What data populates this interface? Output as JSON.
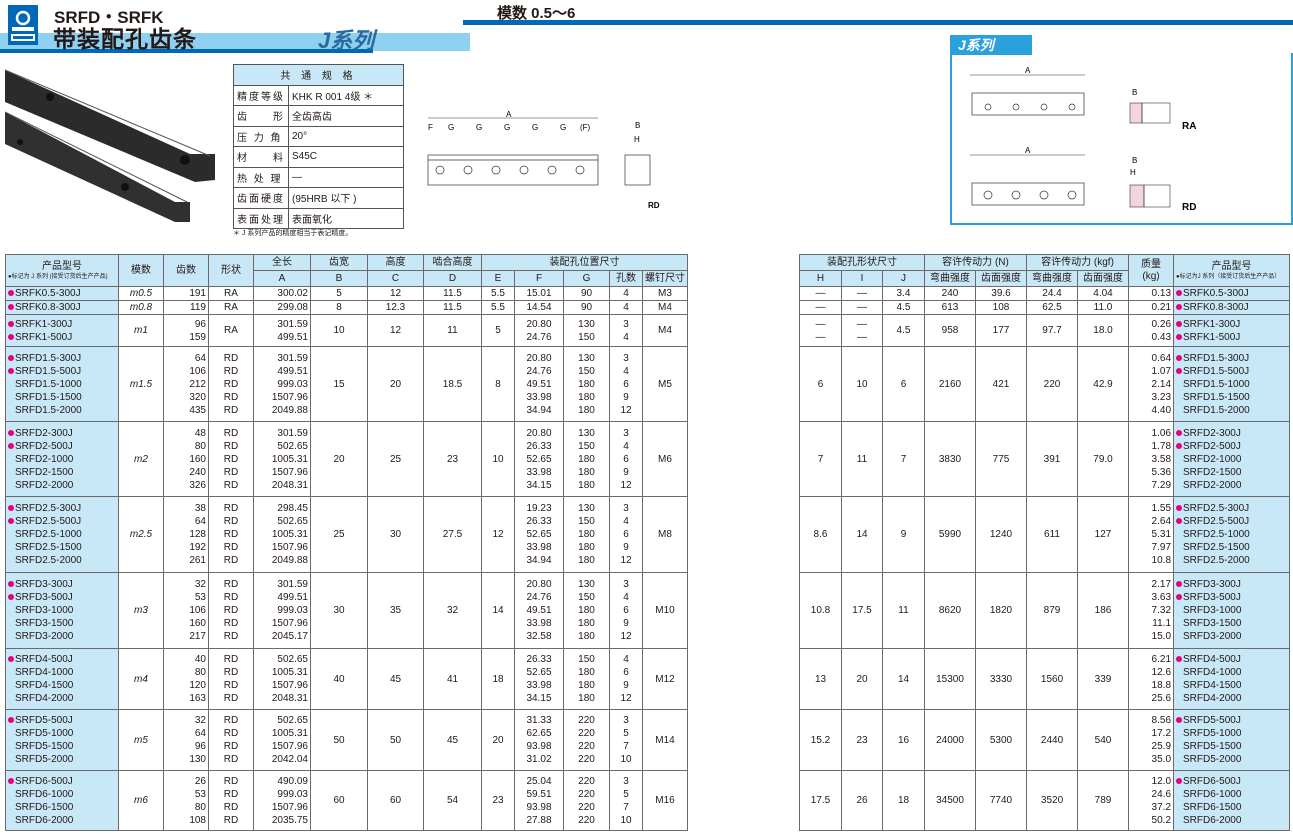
{
  "header": {
    "series_code": "SRFD・SRFK",
    "title": "带装配孔齿条",
    "series_badge": "J系列",
    "module_range": "模数 0.5～6"
  },
  "spec": {
    "title": "共 通 规 格",
    "rows": [
      {
        "k": "精度等级",
        "v": "KHK R 001 4级 ＊"
      },
      {
        "k": "齿　　形",
        "v": "全齿高齿"
      },
      {
        "k": "压 力 角",
        "v": "20°"
      },
      {
        "k": "材　　料",
        "v": "S45C"
      },
      {
        "k": "热 处 理",
        "v": "—"
      },
      {
        "k": "齿面硬度",
        "v": "(95HRB 以下 )"
      },
      {
        "k": "表面处理",
        "v": "表面氧化"
      }
    ],
    "footnote": "＊ J 系列产品的精度相当于表记精度。"
  },
  "diagram": {
    "A": "A",
    "F": "F",
    "G": "G",
    "Fp": "(F)",
    "B": "B",
    "H": "H",
    "RA": "RA",
    "RD": "RD",
    "jtag": "J系列"
  },
  "colors": {
    "accent": "#0068b7",
    "header_bg": "#c8e8f7",
    "j_mark": "#e4007f"
  },
  "table_left": {
    "h_model": "产品型号",
    "h_model_note": "●标记为 J 系列 (接受订货后生产产品)",
    "h_module": "模数",
    "h_teeth": "齿数",
    "h_shape": "形状",
    "h_len": "全长",
    "h_A": "A",
    "h_width": "齿宽",
    "h_B": "B",
    "h_height": "高度",
    "h_C": "C",
    "h_mesh": "啮合高度",
    "h_D": "D",
    "h_hole": "装配孔位置尺寸",
    "h_E": "E",
    "h_F": "F",
    "h_G": "G",
    "h_holes": "孔数",
    "h_screw": "螺钉尺寸"
  },
  "table_right": {
    "h_shape_dim": "装配孔形状尺寸",
    "h_H": "H",
    "h_I": "I",
    "h_J": "J",
    "h_force_N": "容许传动力 (N)",
    "h_force_kgf": "容许传动力 (kgf)",
    "h_bend": "弯曲强度",
    "h_face": "齿面强度",
    "h_mass": "质量",
    "h_mass_unit": "(kg)",
    "h_model": "产品型号",
    "h_model_note": "●标记为J 系列（接受订货后生产产品）"
  },
  "groups": [
    {
      "module": "m0.5",
      "B": "5",
      "C": "12",
      "D": "11.5",
      "E": "5.5",
      "screw": "M3",
      "H": "—",
      "I": "—",
      "J": "3.4",
      "bend_N": "240",
      "face_N": "39.6",
      "bend_kgf": "24.4",
      "face_kgf": "4.04",
      "items": [
        {
          "model": "SRFK0.5-300J",
          "j": true,
          "teeth": "191",
          "shape": "RA",
          "A": "300.02",
          "F": "15.01",
          "G": "90",
          "holes": "4",
          "mass": "0.13"
        }
      ]
    },
    {
      "module": "m0.8",
      "B": "8",
      "C": "12.3",
      "D": "11.5",
      "E": "5.5",
      "screw": "M4",
      "H": "—",
      "I": "—",
      "J": "4.5",
      "bend_N": "613",
      "face_N": "108",
      "bend_kgf": "62.5",
      "face_kgf": "11.0",
      "items": [
        {
          "model": "SRFK0.8-300J",
          "j": true,
          "teeth": "119",
          "shape": "RA",
          "A": "299.08",
          "F": "14.54",
          "G": "90",
          "holes": "4",
          "mass": "0.21"
        }
      ]
    },
    {
      "module": "m1",
      "shape": "RA",
      "B": "10",
      "C": "12",
      "D": "11",
      "E": "5",
      "screw": "M4",
      "H": [
        "—",
        "—"
      ],
      "I": [
        "—",
        "—"
      ],
      "J": "4.5",
      "bend_N": "958",
      "face_N": "177",
      "bend_kgf": "97.7",
      "face_kgf": "18.0",
      "items": [
        {
          "model": "SRFK1-300J",
          "j": true,
          "teeth": "96",
          "A": "301.59",
          "F": "20.80",
          "G": "130",
          "holes": "3",
          "mass": "0.26"
        },
        {
          "model": "SRFK1-500J",
          "j": true,
          "teeth": "159",
          "A": "499.51",
          "F": "24.76",
          "G": "150",
          "holes": "4",
          "mass": "0.43"
        }
      ]
    },
    {
      "module": "m1.5",
      "B": "15",
      "C": "20",
      "D": "18.5",
      "E": "8",
      "screw": "M5",
      "H": "6",
      "I": "10",
      "J": "6",
      "bend_N": "2160",
      "face_N": "421",
      "bend_kgf": "220",
      "face_kgf": "42.9",
      "items": [
        {
          "model": "SRFD1.5-300J",
          "j": true,
          "teeth": "64",
          "shape": "RD",
          "A": "301.59",
          "F": "20.80",
          "G": "130",
          "holes": "3",
          "mass": "0.64"
        },
        {
          "model": "SRFD1.5-500J",
          "j": true,
          "teeth": "106",
          "shape": "RD",
          "A": "499.51",
          "F": "24.76",
          "G": "150",
          "holes": "4",
          "mass": "1.07"
        },
        {
          "model": "SRFD1.5-1000",
          "j": false,
          "teeth": "212",
          "shape": "RD",
          "A": "999.03",
          "F": "49.51",
          "G": "180",
          "holes": "6",
          "mass": "2.14"
        },
        {
          "model": "SRFD1.5-1500",
          "j": false,
          "teeth": "320",
          "shape": "RD",
          "A": "1507.96",
          "F": "33.98",
          "G": "180",
          "holes": "9",
          "mass": "3.23"
        },
        {
          "model": "SRFD1.5-2000",
          "j": false,
          "teeth": "435",
          "shape": "RD",
          "A": "2049.88",
          "F": "34.94",
          "G": "180",
          "holes": "12",
          "mass": "4.40"
        }
      ]
    },
    {
      "module": "m2",
      "B": "20",
      "C": "25",
      "D": "23",
      "E": "10",
      "screw": "M6",
      "H": "7",
      "I": "11",
      "J": "7",
      "bend_N": "3830",
      "face_N": "775",
      "bend_kgf": "391",
      "face_kgf": "79.0",
      "items": [
        {
          "model": "SRFD2-300J",
          "j": true,
          "teeth": "48",
          "shape": "RD",
          "A": "301.59",
          "F": "20.80",
          "G": "130",
          "holes": "3",
          "mass": "1.06"
        },
        {
          "model": "SRFD2-500J",
          "j": true,
          "teeth": "80",
          "shape": "RD",
          "A": "502.65",
          "F": "26.33",
          "G": "150",
          "holes": "4",
          "mass": "1.78"
        },
        {
          "model": "SRFD2-1000",
          "j": false,
          "teeth": "160",
          "shape": "RD",
          "A": "1005.31",
          "F": "52.65",
          "G": "180",
          "holes": "6",
          "mass": "3.58"
        },
        {
          "model": "SRFD2-1500",
          "j": false,
          "teeth": "240",
          "shape": "RD",
          "A": "1507.96",
          "F": "33.98",
          "G": "180",
          "holes": "9",
          "mass": "5.36"
        },
        {
          "model": "SRFD2-2000",
          "j": false,
          "teeth": "326",
          "shape": "RD",
          "A": "2048.31",
          "F": "34.15",
          "G": "180",
          "holes": "12",
          "mass": "7.29"
        }
      ]
    },
    {
      "module": "m2.5",
      "B": "25",
      "C": "30",
      "D": "27.5",
      "E": "12",
      "screw": "M8",
      "H": "8.6",
      "I": "14",
      "J": "9",
      "bend_N": "5990",
      "face_N": "1240",
      "bend_kgf": "611",
      "face_kgf": "127",
      "items": [
        {
          "model": "SRFD2.5-300J",
          "j": true,
          "teeth": "38",
          "shape": "RD",
          "A": "298.45",
          "F": "19.23",
          "G": "130",
          "holes": "3",
          "mass": "1.55"
        },
        {
          "model": "SRFD2.5-500J",
          "j": true,
          "teeth": "64",
          "shape": "RD",
          "A": "502.65",
          "F": "26.33",
          "G": "150",
          "holes": "4",
          "mass": "2.64"
        },
        {
          "model": "SRFD2.5-1000",
          "j": false,
          "teeth": "128",
          "shape": "RD",
          "A": "1005.31",
          "F": "52.65",
          "G": "180",
          "holes": "6",
          "mass": "5.31"
        },
        {
          "model": "SRFD2.5-1500",
          "j": false,
          "teeth": "192",
          "shape": "RD",
          "A": "1507.96",
          "F": "33.98",
          "G": "180",
          "holes": "9",
          "mass": "7.97"
        },
        {
          "model": "SRFD2.5-2000",
          "j": false,
          "teeth": "261",
          "shape": "RD",
          "A": "2049.88",
          "F": "34.94",
          "G": "180",
          "holes": "12",
          "mass": "10.8"
        }
      ]
    },
    {
      "module": "m3",
      "B": "30",
      "C": "35",
      "D": "32",
      "E": "14",
      "screw": "M10",
      "H": "10.8",
      "I": "17.5",
      "J": "11",
      "bend_N": "8620",
      "face_N": "1820",
      "bend_kgf": "879",
      "face_kgf": "186",
      "items": [
        {
          "model": "SRFD3-300J",
          "j": true,
          "teeth": "32",
          "shape": "RD",
          "A": "301.59",
          "F": "20.80",
          "G": "130",
          "holes": "3",
          "mass": "2.17"
        },
        {
          "model": "SRFD3-500J",
          "j": true,
          "teeth": "53",
          "shape": "RD",
          "A": "499.51",
          "F": "24.76",
          "G": "150",
          "holes": "4",
          "mass": "3.63"
        },
        {
          "model": "SRFD3-1000",
          "j": false,
          "teeth": "106",
          "shape": "RD",
          "A": "999.03",
          "F": "49.51",
          "G": "180",
          "holes": "6",
          "mass": "7.32"
        },
        {
          "model": "SRFD3-1500",
          "j": false,
          "teeth": "160",
          "shape": "RD",
          "A": "1507.96",
          "F": "33.98",
          "G": "180",
          "holes": "9",
          "mass": "11.1"
        },
        {
          "model": "SRFD3-2000",
          "j": false,
          "teeth": "217",
          "shape": "RD",
          "A": "2045.17",
          "F": "32.58",
          "G": "180",
          "holes": "12",
          "mass": "15.0"
        }
      ]
    },
    {
      "module": "m4",
      "B": "40",
      "C": "45",
      "D": "41",
      "E": "18",
      "screw": "M12",
      "H": "13",
      "I": "20",
      "J": "14",
      "bend_N": "15300",
      "face_N": "3330",
      "bend_kgf": "1560",
      "face_kgf": "339",
      "items": [
        {
          "model": "SRFD4-500J",
          "j": true,
          "teeth": "40",
          "shape": "RD",
          "A": "502.65",
          "F": "26.33",
          "G": "150",
          "holes": "4",
          "mass": "6.21"
        },
        {
          "model": "SRFD4-1000",
          "j": false,
          "teeth": "80",
          "shape": "RD",
          "A": "1005.31",
          "F": "52.65",
          "G": "180",
          "holes": "6",
          "mass": "12.6"
        },
        {
          "model": "SRFD4-1500",
          "j": false,
          "teeth": "120",
          "shape": "RD",
          "A": "1507.96",
          "F": "33.98",
          "G": "180",
          "holes": "9",
          "mass": "18.8"
        },
        {
          "model": "SRFD4-2000",
          "j": false,
          "teeth": "163",
          "shape": "RD",
          "A": "2048.31",
          "F": "34.15",
          "G": "180",
          "holes": "12",
          "mass": "25.6"
        }
      ]
    },
    {
      "module": "m5",
      "B": "50",
      "C": "50",
      "D": "45",
      "E": "20",
      "screw": "M14",
      "H": "15.2",
      "I": "23",
      "J": "16",
      "bend_N": "24000",
      "face_N": "5300",
      "bend_kgf": "2440",
      "face_kgf": "540",
      "items": [
        {
          "model": "SRFD5-500J",
          "j": true,
          "teeth": "32",
          "shape": "RD",
          "A": "502.65",
          "F": "31.33",
          "G": "220",
          "holes": "3",
          "mass": "8.56"
        },
        {
          "model": "SRFD5-1000",
          "j": false,
          "teeth": "64",
          "shape": "RD",
          "A": "1005.31",
          "F": "62.65",
          "G": "220",
          "holes": "5",
          "mass": "17.2"
        },
        {
          "model": "SRFD5-1500",
          "j": false,
          "teeth": "96",
          "shape": "RD",
          "A": "1507.96",
          "F": "93.98",
          "G": "220",
          "holes": "7",
          "mass": "25.9"
        },
        {
          "model": "SRFD5-2000",
          "j": false,
          "teeth": "130",
          "shape": "RD",
          "A": "2042.04",
          "F": "31.02",
          "G": "220",
          "holes": "10",
          "mass": "35.0"
        }
      ]
    },
    {
      "module": "m6",
      "B": "60",
      "C": "60",
      "D": "54",
      "E": "23",
      "screw": "M16",
      "H": "17.5",
      "I": "26",
      "J": "18",
      "bend_N": "34500",
      "face_N": "7740",
      "bend_kgf": "3520",
      "face_kgf": "789",
      "items": [
        {
          "model": "SRFD6-500J",
          "j": true,
          "teeth": "26",
          "shape": "RD",
          "A": "490.09",
          "F": "25.04",
          "G": "220",
          "holes": "3",
          "mass": "12.0"
        },
        {
          "model": "SRFD6-1000",
          "j": false,
          "teeth": "53",
          "shape": "RD",
          "A": "999.03",
          "F": "59.51",
          "G": "220",
          "holes": "5",
          "mass": "24.6"
        },
        {
          "model": "SRFD6-1500",
          "j": false,
          "teeth": "80",
          "shape": "RD",
          "A": "1507.96",
          "F": "93.98",
          "G": "220",
          "holes": "7",
          "mass": "37.2"
        },
        {
          "model": "SRFD6-2000",
          "j": false,
          "teeth": "108",
          "shape": "RD",
          "A": "2035.75",
          "F": "27.88",
          "G": "220",
          "holes": "10",
          "mass": "50.2"
        }
      ]
    }
  ]
}
